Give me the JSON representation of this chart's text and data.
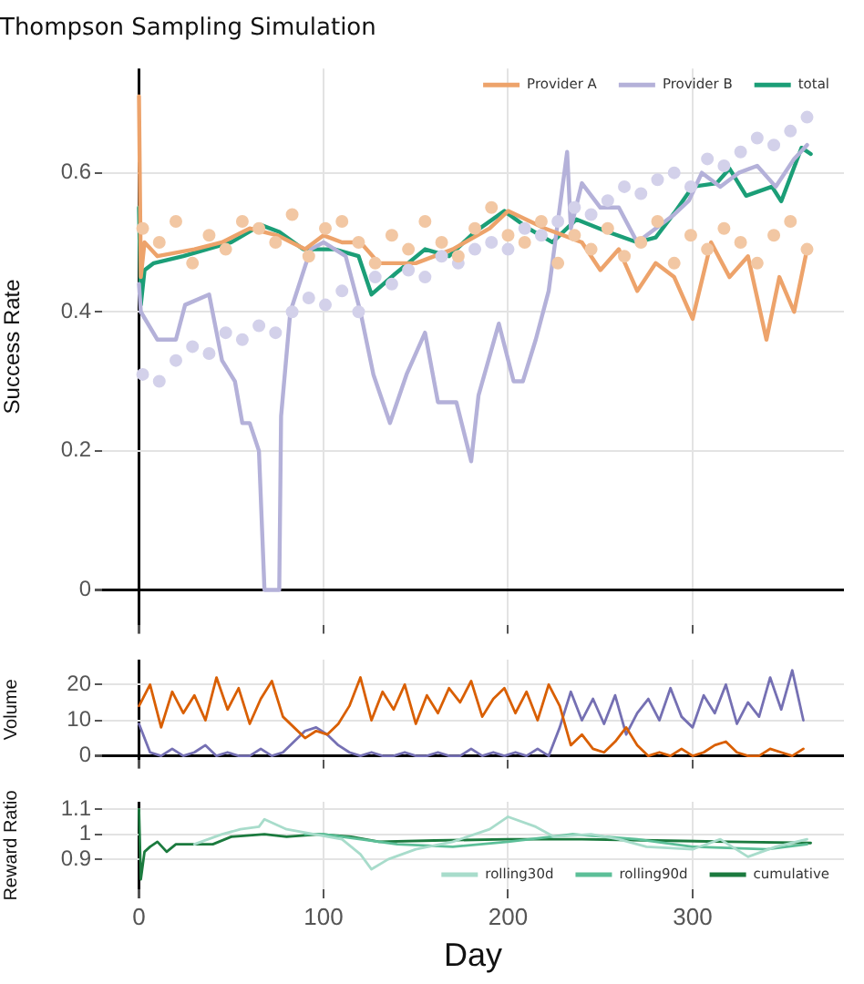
{
  "chart_data": [
    {
      "type": "line",
      "title": "Thompson Sampling Simulation",
      "ylabel": "Success Rate",
      "xlim": [
        -20,
        382
      ],
      "xticks": [
        0,
        100,
        200,
        300
      ],
      "ylim": [
        -0.05,
        0.75
      ],
      "yticks": [
        0,
        0.2,
        0.4,
        0.6
      ],
      "grid": true,
      "legend": "top right",
      "tick_labels": "y",
      "series": [
        {
          "type": "scatter",
          "marker": "circle",
          "color": "#f2c7a3",
          "x": [
            2,
            11,
            20,
            29,
            38,
            47,
            56,
            65,
            74,
            83,
            92,
            101,
            110,
            119,
            128,
            137,
            146,
            155,
            164,
            173,
            182,
            191,
            200,
            209,
            218,
            227,
            236,
            245,
            254,
            263,
            272,
            281,
            290,
            299,
            308,
            317,
            326,
            335,
            344,
            353,
            362
          ],
          "values": [
            0.52,
            0.5,
            0.53,
            0.47,
            0.51,
            0.49,
            0.53,
            0.52,
            0.5,
            0.54,
            0.48,
            0.52,
            0.53,
            0.5,
            0.47,
            0.51,
            0.49,
            0.53,
            0.5,
            0.48,
            0.52,
            0.55,
            0.51,
            0.5,
            0.53,
            0.47,
            0.51,
            0.49,
            0.52,
            0.48,
            0.5,
            0.53,
            0.47,
            0.51,
            0.49,
            0.52,
            0.5,
            0.47,
            0.51,
            0.53,
            0.49
          ]
        },
        {
          "type": "scatter",
          "marker": "circle",
          "color": "#d3d1ea",
          "x": [
            2,
            11,
            20,
            29,
            38,
            47,
            56,
            65,
            74,
            83,
            92,
            101,
            110,
            119,
            128,
            137,
            146,
            155,
            164,
            173,
            182,
            191,
            200,
            209,
            218,
            227,
            236,
            245,
            254,
            263,
            272,
            281,
            290,
            299,
            308,
            317,
            326,
            335,
            344,
            353,
            362
          ],
          "values": [
            0.31,
            0.3,
            0.33,
            0.35,
            0.34,
            0.37,
            0.36,
            0.38,
            0.37,
            0.4,
            0.42,
            0.41,
            0.43,
            0.4,
            0.45,
            0.44,
            0.46,
            0.45,
            0.48,
            0.47,
            0.49,
            0.5,
            0.49,
            0.52,
            0.51,
            0.53,
            0.55,
            0.54,
            0.56,
            0.58,
            0.57,
            0.59,
            0.6,
            0.58,
            0.62,
            0.61,
            0.63,
            0.65,
            0.64,
            0.66,
            0.68
          ]
        },
        {
          "type": "line",
          "name": "Provider A",
          "color": "#eda36b",
          "x": [
            0,
            1,
            3,
            10,
            30,
            45,
            60,
            75,
            90,
            100,
            110,
            120,
            130,
            150,
            170,
            190,
            200,
            220,
            240,
            250,
            260,
            270,
            280,
            290,
            300,
            310,
            320,
            330,
            340,
            347,
            355,
            362
          ],
          "values": [
            0.71,
            0.45,
            0.5,
            0.48,
            0.49,
            0.5,
            0.52,
            0.51,
            0.49,
            0.51,
            0.5,
            0.5,
            0.47,
            0.47,
            0.49,
            0.52,
            0.545,
            0.52,
            0.5,
            0.46,
            0.49,
            0.43,
            0.47,
            0.45,
            0.39,
            0.5,
            0.45,
            0.48,
            0.36,
            0.45,
            0.4,
            0.49
          ]
        },
        {
          "type": "line",
          "name": "Provider B",
          "color": "#b4b1d9",
          "x": [
            0,
            1,
            10,
            20,
            25,
            38,
            45,
            52,
            56,
            60,
            65,
            68,
            76,
            77,
            82,
            93,
            100,
            112,
            120,
            127,
            136,
            145,
            155,
            162,
            172,
            180,
            184,
            195,
            203,
            208,
            215,
            222,
            232,
            234,
            240,
            250,
            260,
            270,
            280,
            290,
            298,
            305,
            315,
            325,
            335,
            345,
            355,
            362
          ],
          "values": [
            0.44,
            0.4,
            0.36,
            0.36,
            0.41,
            0.425,
            0.33,
            0.3,
            0.24,
            0.24,
            0.2,
            0,
            0,
            0.25,
            0.4,
            0.49,
            0.5,
            0.48,
            0.4,
            0.31,
            0.24,
            0.31,
            0.37,
            0.27,
            0.27,
            0.185,
            0.28,
            0.383,
            0.3,
            0.3,
            0.36,
            0.43,
            0.63,
            0.52,
            0.585,
            0.55,
            0.55,
            0.5,
            0.52,
            0.54,
            0.56,
            0.6,
            0.58,
            0.6,
            0.61,
            0.58,
            0.62,
            0.64
          ]
        },
        {
          "type": "line",
          "name": "total",
          "color": "#1b9e77",
          "x": [
            0,
            1,
            3,
            8,
            24,
            50,
            66,
            76,
            89,
            106,
            119,
            126,
            139,
            155,
            168,
            182,
            198,
            211,
            224,
            237,
            254,
            270,
            280,
            290,
            300,
            313,
            320,
            329,
            343,
            348,
            359,
            364
          ],
          "values": [
            0.55,
            0.41,
            0.46,
            0.47,
            0.48,
            0.5,
            0.525,
            0.515,
            0.49,
            0.49,
            0.48,
            0.425,
            0.455,
            0.49,
            0.48,
            0.515,
            0.545,
            0.52,
            0.5,
            0.533,
            0.515,
            0.5,
            0.507,
            0.542,
            0.58,
            0.585,
            0.606,
            0.567,
            0.58,
            0.559,
            0.636,
            0.627
          ]
        }
      ]
    },
    {
      "type": "line",
      "ylabel": "Volume",
      "xlim": [
        -20,
        382
      ],
      "xticks": [
        0,
        100,
        200,
        300
      ],
      "ylim": [
        -1,
        27
      ],
      "yticks": [
        0,
        10,
        20
      ],
      "grid": true,
      "tick_labels": "y",
      "x": [
        0,
        6,
        12,
        18,
        24,
        30,
        36,
        42,
        48,
        54,
        60,
        66,
        72,
        78,
        84,
        90,
        96,
        102,
        108,
        114,
        120,
        126,
        132,
        138,
        144,
        150,
        156,
        162,
        168,
        174,
        180,
        186,
        192,
        198,
        204,
        210,
        216,
        222,
        228,
        234,
        240,
        246,
        252,
        258,
        264,
        270,
        276,
        282,
        288,
        294,
        300,
        306,
        312,
        318,
        324,
        330,
        336,
        342,
        348,
        354,
        360
      ],
      "series": [
        {
          "type": "line",
          "color": "#d95f02",
          "values": [
            14,
            20,
            8,
            18,
            12,
            17,
            10,
            22,
            13,
            19,
            9,
            16,
            21,
            11,
            8,
            5,
            7,
            6,
            9,
            14,
            22,
            10,
            18,
            13,
            20,
            9,
            17,
            12,
            19,
            15,
            21,
            11,
            16,
            19,
            12,
            18,
            10,
            20,
            14,
            3,
            6,
            2,
            1,
            4,
            8,
            3,
            0,
            1,
            0,
            2,
            0,
            1,
            3,
            4,
            1,
            0,
            0,
            2,
            1,
            0,
            2
          ]
        },
        {
          "type": "line",
          "color": "#7570b3",
          "values": [
            9,
            1,
            0,
            2,
            0,
            1,
            3,
            0,
            1,
            0,
            0,
            2,
            0,
            1,
            4,
            7,
            8,
            6,
            3,
            1,
            0,
            1,
            0,
            0,
            1,
            0,
            0,
            1,
            0,
            0,
            2,
            0,
            1,
            0,
            1,
            0,
            2,
            0,
            8,
            18,
            10,
            16,
            9,
            17,
            6,
            12,
            16,
            10,
            19,
            11,
            8,
            17,
            12,
            20,
            9,
            15,
            11,
            22,
            13,
            24,
            10
          ]
        }
      ]
    },
    {
      "type": "line",
      "ylabel": "Reward Ratio",
      "xlabel": "Day",
      "xlim": [
        -20,
        382
      ],
      "xticks": [
        0,
        100,
        200,
        300
      ],
      "ylim": [
        0.78,
        1.13
      ],
      "yticks": [
        0.9,
        1,
        1.1
      ],
      "grid": true,
      "legend": "bottom right",
      "series": [
        {
          "type": "line",
          "name": "rolling30d",
          "color": "#a8dccb",
          "x": [
            30,
            45,
            55,
            65,
            68,
            80,
            95,
            110,
            120,
            126,
            135,
            150,
            170,
            190,
            200,
            215,
            225,
            245,
            260,
            275,
            300,
            315,
            330,
            345,
            362
          ],
          "values": [
            0.96,
            1,
            1.02,
            1.03,
            1.06,
            1.02,
            1,
            0.98,
            0.92,
            0.86,
            0.9,
            0.94,
            0.97,
            1.02,
            1.07,
            1.03,
            0.99,
            1,
            0.98,
            0.95,
            0.94,
            0.98,
            0.91,
            0.95,
            0.98
          ]
        },
        {
          "type": "line",
          "name": "rolling90d",
          "color": "#5cbf98",
          "x": [
            90,
            100,
            120,
            140,
            170,
            200,
            235,
            270,
            300,
            340,
            362
          ],
          "values": [
            1,
            1,
            0.98,
            0.96,
            0.95,
            0.97,
            1,
            0.98,
            0.95,
            0.94,
            0.96
          ]
        },
        {
          "type": "line",
          "name": "cumulative",
          "color": "#1b7a3e",
          "x": [
            0,
            1,
            3,
            6,
            10,
            15,
            20,
            30,
            40,
            50,
            68,
            80,
            98,
            115,
            130,
            160,
            200,
            240,
            280,
            320,
            364
          ],
          "values": [
            1.1,
            0.82,
            0.93,
            0.95,
            0.97,
            0.93,
            0.96,
            0.96,
            0.96,
            0.99,
            1,
            0.99,
            1,
            0.99,
            0.97,
            0.975,
            0.98,
            0.98,
            0.975,
            0.97,
            0.965
          ]
        }
      ]
    }
  ]
}
